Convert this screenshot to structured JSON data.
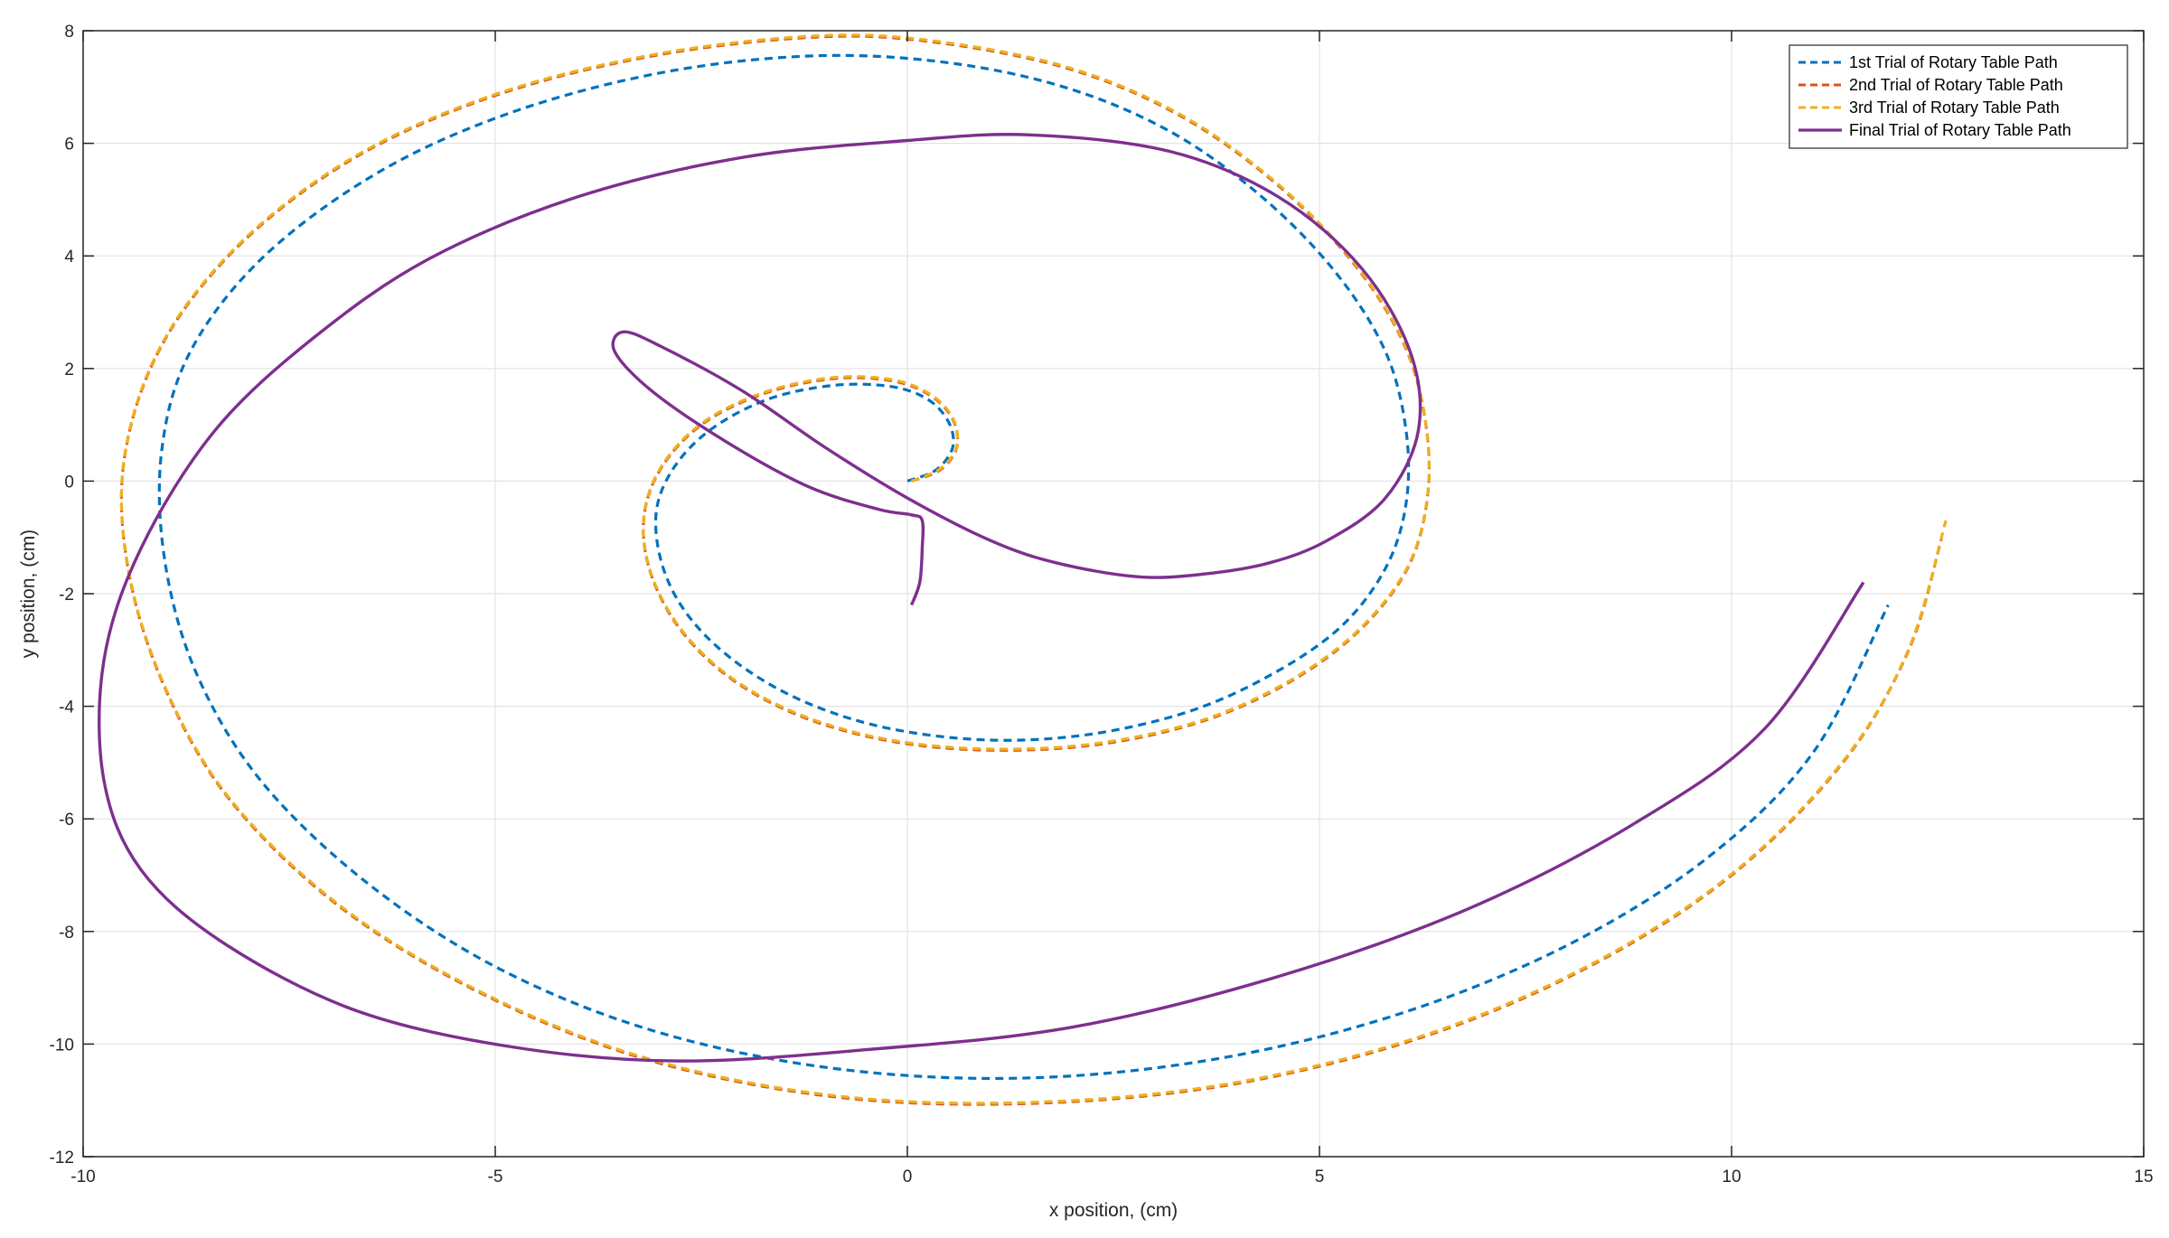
{
  "chart_data": {
    "type": "line",
    "title": "",
    "xlabel": "x position, (cm)",
    "ylabel": "y position, (cm)",
    "xlim": [
      -10,
      15
    ],
    "ylim": [
      -12,
      8
    ],
    "xticks": [
      -10,
      -5,
      0,
      5,
      10,
      15
    ],
    "yticks": [
      -12,
      -10,
      -8,
      -6,
      -4,
      -2,
      0,
      2,
      4,
      6,
      8
    ],
    "xtick_labels": [
      "-10",
      "-5",
      "0",
      "5",
      "10",
      "15"
    ],
    "ytick_labels": [
      "-12",
      "-10",
      "-8",
      "-6",
      "-4",
      "-2",
      "0",
      "2",
      "4",
      "6",
      "8"
    ],
    "grid": true,
    "legend_position": "top-right",
    "series": [
      {
        "name": "1st Trial of Rotary Table Path",
        "color": "#0072BD",
        "style": "dashed",
        "points": [
          [
            0,
            0
          ],
          [
            0.35,
            0.2
          ],
          [
            0.55,
            0.6
          ],
          [
            0.5,
            1.05
          ],
          [
            0.25,
            1.45
          ],
          [
            -0.2,
            1.68
          ],
          [
            -0.9,
            1.7
          ],
          [
            -1.7,
            1.45
          ],
          [
            -2.4,
            0.9
          ],
          [
            -2.85,
            0.2
          ],
          [
            -3.05,
            -0.6
          ],
          [
            -2.95,
            -1.6
          ],
          [
            -2.6,
            -2.5
          ],
          [
            -2.0,
            -3.3
          ],
          [
            -1.2,
            -3.95
          ],
          [
            -0.2,
            -4.4
          ],
          [
            1,
            -4.6
          ],
          [
            2.2,
            -4.5
          ],
          [
            3.4,
            -4.1
          ],
          [
            4.4,
            -3.45
          ],
          [
            5.25,
            -2.6
          ],
          [
            5.8,
            -1.55
          ],
          [
            6.05,
            -0.4
          ],
          [
            6.05,
            0.9
          ],
          [
            5.8,
            2.3
          ],
          [
            5.2,
            3.7
          ],
          [
            4.3,
            5.05
          ],
          [
            3.2,
            6.2
          ],
          [
            1.9,
            7.0
          ],
          [
            0.4,
            7.45
          ],
          [
            -1.2,
            7.55
          ],
          [
            -3.0,
            7.25
          ],
          [
            -4.8,
            6.55
          ],
          [
            -6.4,
            5.5
          ],
          [
            -7.8,
            4.0
          ],
          [
            -8.7,
            2.3
          ],
          [
            -9.05,
            0.5
          ],
          [
            -9.0,
            -1.5
          ],
          [
            -8.6,
            -3.5
          ],
          [
            -7.8,
            -5.4
          ],
          [
            -6.5,
            -7.2
          ],
          [
            -4.9,
            -8.7
          ],
          [
            -3.0,
            -9.8
          ],
          [
            -0.8,
            -10.45
          ],
          [
            1.5,
            -10.6
          ],
          [
            3.8,
            -10.25
          ],
          [
            6.0,
            -9.45
          ],
          [
            8.0,
            -8.25
          ],
          [
            9.7,
            -6.7
          ],
          [
            11.0,
            -4.8
          ],
          [
            11.9,
            -2.2
          ]
        ]
      },
      {
        "name": "2nd Trial of Rotary Table Path",
        "color": "#D95319",
        "style": "dashed",
        "points": [
          [
            0.05,
            0
          ],
          [
            0.4,
            0.2
          ],
          [
            0.6,
            0.6
          ],
          [
            0.55,
            1.1
          ],
          [
            0.28,
            1.52
          ],
          [
            -0.18,
            1.78
          ],
          [
            -0.9,
            1.82
          ],
          [
            -1.75,
            1.55
          ],
          [
            -2.5,
            1.0
          ],
          [
            -3.0,
            0.2
          ],
          [
            -3.2,
            -0.7
          ],
          [
            -3.1,
            -1.7
          ],
          [
            -2.72,
            -2.7
          ],
          [
            -2.1,
            -3.55
          ],
          [
            -1.25,
            -4.2
          ],
          [
            -0.2,
            -4.62
          ],
          [
            1.0,
            -4.78
          ],
          [
            2.3,
            -4.68
          ],
          [
            3.55,
            -4.28
          ],
          [
            4.6,
            -3.6
          ],
          [
            5.45,
            -2.7
          ],
          [
            6.05,
            -1.6
          ],
          [
            6.3,
            -0.4
          ],
          [
            6.3,
            0.9
          ],
          [
            6.05,
            2.35
          ],
          [
            5.45,
            3.8
          ],
          [
            4.5,
            5.25
          ],
          [
            3.3,
            6.5
          ],
          [
            1.9,
            7.35
          ],
          [
            0.2,
            7.82
          ],
          [
            -1.2,
            7.88
          ],
          [
            -3.1,
            7.55
          ],
          [
            -5.0,
            6.85
          ],
          [
            -6.7,
            5.75
          ],
          [
            -8.1,
            4.2
          ],
          [
            -9.05,
            2.4
          ],
          [
            -9.5,
            0.4
          ],
          [
            -9.45,
            -1.6
          ],
          [
            -9.0,
            -3.7
          ],
          [
            -8.2,
            -5.7
          ],
          [
            -6.85,
            -7.6
          ],
          [
            -5.1,
            -9.15
          ],
          [
            -3.1,
            -10.3
          ],
          [
            -0.8,
            -10.95
          ],
          [
            1.6,
            -11.05
          ],
          [
            4.0,
            -10.7
          ],
          [
            6.3,
            -9.85
          ],
          [
            8.3,
            -8.6
          ],
          [
            10.0,
            -7.0
          ],
          [
            11.35,
            -5.0
          ],
          [
            12.15,
            -3.0
          ],
          [
            12.55,
            -1.0
          ]
        ]
      },
      {
        "name": "3rd Trial of Rotary Table Path",
        "color": "#EDB120",
        "style": "dashed",
        "points": [
          [
            0.05,
            0
          ],
          [
            0.4,
            0.22
          ],
          [
            0.6,
            0.62
          ],
          [
            0.55,
            1.12
          ],
          [
            0.28,
            1.54
          ],
          [
            -0.18,
            1.8
          ],
          [
            -0.9,
            1.84
          ],
          [
            -1.75,
            1.57
          ],
          [
            -2.5,
            1.02
          ],
          [
            -3.0,
            0.22
          ],
          [
            -3.2,
            -0.68
          ],
          [
            -3.1,
            -1.68
          ],
          [
            -2.72,
            -2.68
          ],
          [
            -2.1,
            -3.53
          ],
          [
            -1.25,
            -4.18
          ],
          [
            -0.2,
            -4.6
          ],
          [
            1.0,
            -4.76
          ],
          [
            2.3,
            -4.66
          ],
          [
            3.55,
            -4.26
          ],
          [
            4.6,
            -3.58
          ],
          [
            5.45,
            -2.68
          ],
          [
            6.05,
            -1.58
          ],
          [
            6.3,
            -0.38
          ],
          [
            6.3,
            0.92
          ],
          [
            6.05,
            2.37
          ],
          [
            5.45,
            3.82
          ],
          [
            4.5,
            5.27
          ],
          [
            3.3,
            6.52
          ],
          [
            1.9,
            7.37
          ],
          [
            0.2,
            7.84
          ],
          [
            -1.2,
            7.9
          ],
          [
            -3.1,
            7.57
          ],
          [
            -5.0,
            6.87
          ],
          [
            -6.7,
            5.77
          ],
          [
            -8.1,
            4.22
          ],
          [
            -9.05,
            2.42
          ],
          [
            -9.5,
            0.42
          ],
          [
            -9.45,
            -1.58
          ],
          [
            -9.0,
            -3.68
          ],
          [
            -8.2,
            -5.68
          ],
          [
            -6.85,
            -7.58
          ],
          [
            -5.1,
            -9.13
          ],
          [
            -3.1,
            -10.28
          ],
          [
            -0.8,
            -10.93
          ],
          [
            1.6,
            -11.03
          ],
          [
            4.0,
            -10.68
          ],
          [
            6.3,
            -9.83
          ],
          [
            8.3,
            -8.58
          ],
          [
            10.0,
            -6.98
          ],
          [
            11.35,
            -4.98
          ],
          [
            12.15,
            -2.98
          ],
          [
            12.6,
            -0.7
          ]
        ]
      },
      {
        "name": "Final Trial of Rotary Table Path",
        "color": "#7E2F8E",
        "style": "solid",
        "points": [
          [
            0.05,
            -2.2
          ],
          [
            0.15,
            -1.8
          ],
          [
            0.18,
            -1.2
          ],
          [
            0.18,
            -0.7
          ],
          [
            0.05,
            -0.6
          ],
          [
            -0.35,
            -0.5
          ],
          [
            -1.2,
            -0.1
          ],
          [
            -2.2,
            0.7
          ],
          [
            -3.1,
            1.6
          ],
          [
            -3.55,
            2.3
          ],
          [
            -3.45,
            2.65
          ],
          [
            -3.0,
            2.4
          ],
          [
            -2.0,
            1.6
          ],
          [
            -1.0,
            0.6
          ],
          [
            0.0,
            -0.3
          ],
          [
            1.0,
            -1.05
          ],
          [
            1.8,
            -1.45
          ],
          [
            2.8,
            -1.7
          ],
          [
            3.6,
            -1.65
          ],
          [
            4.4,
            -1.45
          ],
          [
            5.1,
            -1.05
          ],
          [
            5.8,
            -0.3
          ],
          [
            6.2,
            0.9
          ],
          [
            6.1,
            2.3
          ],
          [
            5.5,
            3.8
          ],
          [
            4.5,
            5.05
          ],
          [
            3.2,
            5.85
          ],
          [
            1.5,
            6.15
          ],
          [
            0,
            6.05
          ],
          [
            -2.0,
            5.75
          ],
          [
            -4.0,
            5.05
          ],
          [
            -5.8,
            3.95
          ],
          [
            -7.2,
            2.55
          ],
          [
            -8.4,
            0.9
          ],
          [
            -9.3,
            -1.2
          ],
          [
            -9.75,
            -3.2
          ],
          [
            -9.75,
            -5.3
          ],
          [
            -9.3,
            -6.9
          ],
          [
            -8.3,
            -8.2
          ],
          [
            -6.7,
            -9.4
          ],
          [
            -4.8,
            -10.05
          ],
          [
            -2.8,
            -10.3
          ],
          [
            -0.5,
            -10.1
          ],
          [
            2.0,
            -9.7
          ],
          [
            4.5,
            -8.8
          ],
          [
            6.8,
            -7.6
          ],
          [
            8.8,
            -6.1
          ],
          [
            10.4,
            -4.4
          ],
          [
            11.6,
            -1.8
          ]
        ]
      }
    ]
  }
}
